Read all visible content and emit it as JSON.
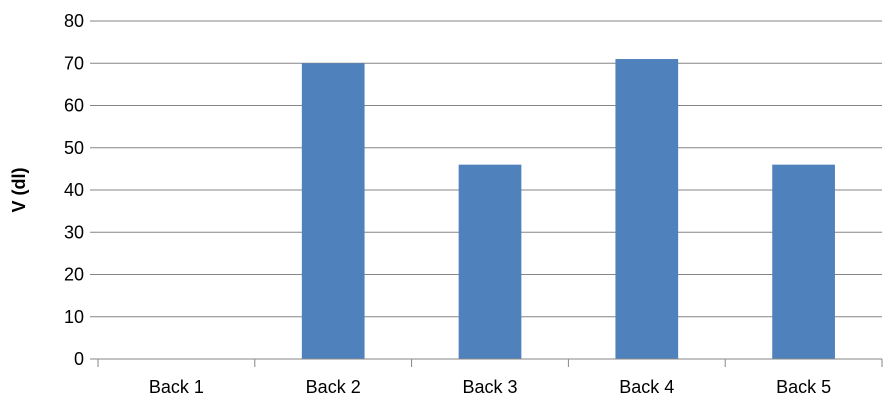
{
  "chart_data": {
    "type": "bar",
    "title": "",
    "xlabel": "",
    "ylabel": "V (dl)",
    "categories": [
      "Back 1",
      "Back 2",
      "Back 3",
      "Back 4",
      "Back 5"
    ],
    "values": [
      0,
      70,
      46,
      71,
      46
    ],
    "ylim": [
      0,
      80
    ],
    "yticks": [
      0,
      10,
      20,
      30,
      40,
      50,
      60,
      70,
      80
    ],
    "grid": true,
    "legend": "none",
    "colors": {
      "bar": "#4f81bd",
      "grid": "#868686",
      "axis": "#868686",
      "text": "#000000"
    }
  }
}
